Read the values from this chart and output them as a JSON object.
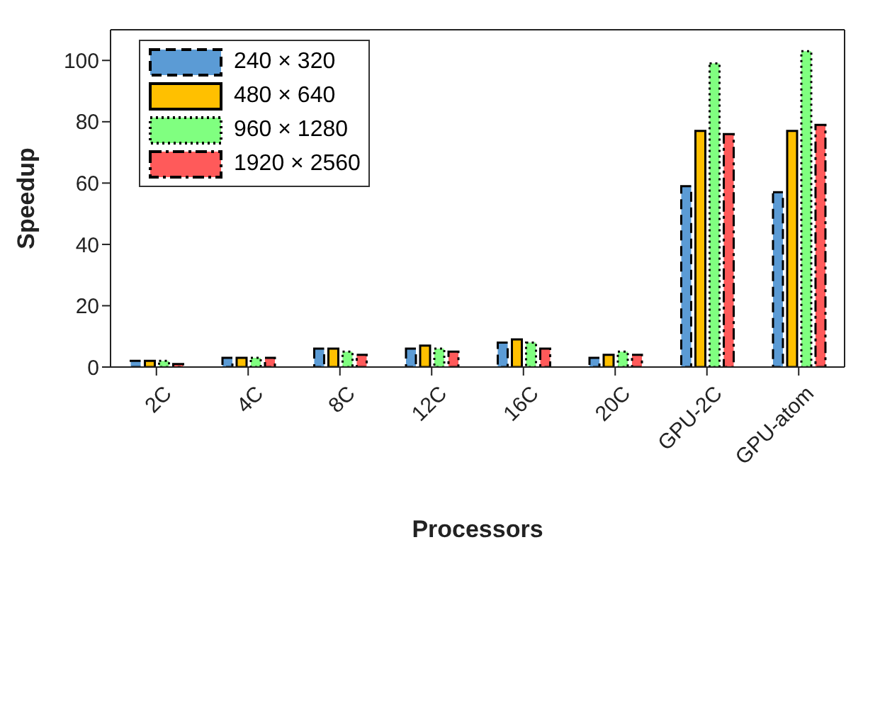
{
  "chart_data": {
    "type": "bar",
    "xlabel": "Processors",
    "ylabel": "Speedup",
    "categories": [
      "2C",
      "4C",
      "8C",
      "12C",
      "16C",
      "20C",
      "GPU-2C",
      "GPU-atom"
    ],
    "series": [
      {
        "name": "240 × 320",
        "color": "#5b9bd5",
        "line_style": "dashed",
        "values": [
          2,
          3,
          6,
          6,
          8,
          3,
          59,
          57
        ]
      },
      {
        "name": "480 × 640",
        "color": "#ffc000",
        "line_style": "solid",
        "values": [
          2,
          3,
          6,
          7,
          9,
          4,
          77,
          77
        ]
      },
      {
        "name": "960 × 1280",
        "color": "#80ff80",
        "line_style": "dotted",
        "values": [
          2,
          3,
          5,
          6,
          8,
          5,
          99,
          103
        ]
      },
      {
        "name": "1920 × 2560",
        "color": "#ff5a5a",
        "line_style": "dashdot",
        "values": [
          1,
          3,
          4,
          5,
          6,
          4,
          76,
          79
        ]
      }
    ],
    "ylim": [
      0,
      110
    ],
    "yticks": [
      0,
      20,
      40,
      60,
      80,
      100
    ],
    "grid": false,
    "legend": "top left"
  }
}
